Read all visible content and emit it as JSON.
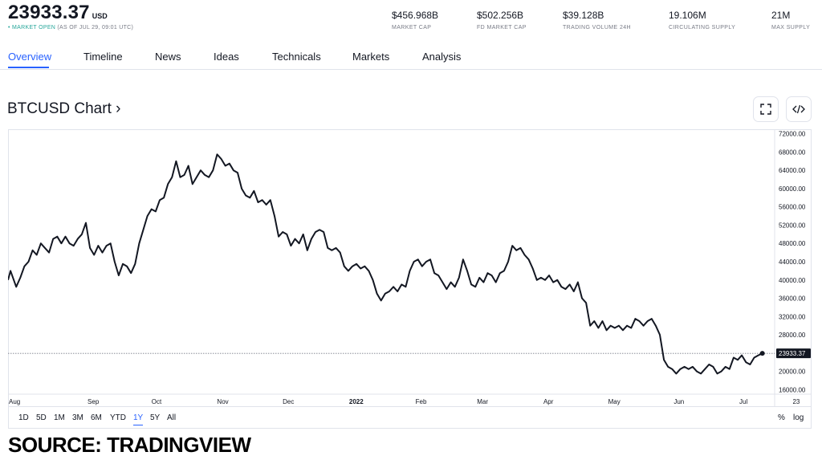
{
  "header": {
    "price": "23933.37",
    "currency": "USD",
    "status_dot": "•",
    "status_open": "MARKET OPEN",
    "status_time": "(AS OF JUL 29, 09:01 UTC)"
  },
  "stats": [
    {
      "value": "$456.968B",
      "label": "MARKET CAP"
    },
    {
      "value": "$502.256B",
      "label": "FD MARKET CAP"
    },
    {
      "value": "$39.128B",
      "label": "TRADING VOLUME 24H"
    },
    {
      "value": "19.106M",
      "label": "CIRCULATING SUPPLY"
    },
    {
      "value": "21M",
      "label": "MAX SUPPLY"
    }
  ],
  "tabs": [
    {
      "label": "Overview",
      "active": true
    },
    {
      "label": "Timeline"
    },
    {
      "label": "News"
    },
    {
      "label": "Ideas"
    },
    {
      "label": "Technicals"
    },
    {
      "label": "Markets"
    },
    {
      "label": "Analysis"
    }
  ],
  "chart_title": "BTCUSD Chart ›",
  "icons": {
    "fullscreen": "fullscreen-icon",
    "embed": "code-embed-icon"
  },
  "ranges": [
    "1D",
    "5D",
    "1M",
    "3M",
    "6M",
    "YTD",
    "1Y",
    "5Y",
    "All"
  ],
  "active_range": "1Y",
  "scale_options": [
    "%",
    "log"
  ],
  "source": "SOURCE: TRADINGVIEW",
  "colors": {
    "accent": "#2962ff",
    "line": "#131722",
    "market_open": "#26a69a"
  },
  "chart_data": {
    "type": "line",
    "title": "",
    "xlabel": "",
    "ylabel": "",
    "ylim": [
      15000,
      73000
    ],
    "y_ticks": [
      "72000.00",
      "68000.00",
      "64000.00",
      "60000.00",
      "56000.00",
      "52000.00",
      "48000.00",
      "44000.00",
      "40000.00",
      "36000.00",
      "32000.00",
      "28000.00",
      "24000.00",
      "20000.00",
      "16000.00"
    ],
    "x_ticks": [
      "Aug",
      "Sep",
      "Oct",
      "Nov",
      "Dec",
      "2022",
      "Feb",
      "Mar",
      "Apr",
      "May",
      "Jun",
      "Jul",
      "23"
    ],
    "last_price_label": "23933.37",
    "grid": false,
    "series": [
      {
        "values": [
          [
            0.0,
            40000
          ],
          [
            0.3,
            42000
          ],
          [
            1.0,
            38500
          ],
          [
            1.5,
            40500
          ],
          [
            2.0,
            43000
          ],
          [
            2.5,
            44000
          ],
          [
            3.0,
            46500
          ],
          [
            3.5,
            45500
          ],
          [
            4.0,
            48000
          ],
          [
            4.5,
            47000
          ],
          [
            5.0,
            46000
          ],
          [
            5.5,
            49000
          ],
          [
            6.0,
            49500
          ],
          [
            6.5,
            48000
          ],
          [
            7.0,
            49500
          ],
          [
            7.5,
            48000
          ],
          [
            8.0,
            47500
          ],
          [
            8.5,
            49000
          ],
          [
            9.0,
            50000
          ],
          [
            9.5,
            52500
          ],
          [
            10.0,
            47000
          ],
          [
            10.5,
            45500
          ],
          [
            11.0,
            47500
          ],
          [
            11.5,
            46000
          ],
          [
            12.0,
            47500
          ],
          [
            12.5,
            48000
          ],
          [
            13.0,
            44000
          ],
          [
            13.5,
            41000
          ],
          [
            14.0,
            43500
          ],
          [
            14.5,
            43000
          ],
          [
            15.0,
            41500
          ],
          [
            15.5,
            43500
          ],
          [
            16.0,
            48000
          ],
          [
            16.5,
            51000
          ],
          [
            17.0,
            54000
          ],
          [
            17.5,
            55500
          ],
          [
            18.0,
            55000
          ],
          [
            18.5,
            57500
          ],
          [
            19.0,
            58000
          ],
          [
            19.5,
            61000
          ],
          [
            20.0,
            62500
          ],
          [
            20.5,
            66000
          ],
          [
            21.0,
            62500
          ],
          [
            21.5,
            63000
          ],
          [
            22.0,
            65000
          ],
          [
            22.5,
            61000
          ],
          [
            23.0,
            62500
          ],
          [
            23.5,
            64000
          ],
          [
            24.0,
            63000
          ],
          [
            24.5,
            62500
          ],
          [
            25.0,
            64000
          ],
          [
            25.5,
            67500
          ],
          [
            26.0,
            66500
          ],
          [
            26.5,
            65000
          ],
          [
            27.0,
            65500
          ],
          [
            27.5,
            64000
          ],
          [
            28.0,
            63500
          ],
          [
            28.5,
            60000
          ],
          [
            29.0,
            58500
          ],
          [
            29.5,
            58000
          ],
          [
            30.0,
            59500
          ],
          [
            30.5,
            57000
          ],
          [
            31.0,
            57500
          ],
          [
            31.5,
            56500
          ],
          [
            32.0,
            57500
          ],
          [
            32.5,
            54000
          ],
          [
            33.0,
            49500
          ],
          [
            33.5,
            50500
          ],
          [
            34.0,
            50000
          ],
          [
            34.5,
            47500
          ],
          [
            35.0,
            49000
          ],
          [
            35.5,
            48000
          ],
          [
            36.0,
            50000
          ],
          [
            36.5,
            46500
          ],
          [
            37.0,
            49000
          ],
          [
            37.5,
            50500
          ],
          [
            38.0,
            51000
          ],
          [
            38.5,
            50500
          ],
          [
            39.0,
            47000
          ],
          [
            39.5,
            46500
          ],
          [
            40.0,
            47000
          ],
          [
            40.5,
            46000
          ],
          [
            41.0,
            43000
          ],
          [
            41.5,
            42000
          ],
          [
            42.0,
            43000
          ],
          [
            42.5,
            43500
          ],
          [
            43.0,
            42500
          ],
          [
            43.5,
            43000
          ],
          [
            44.0,
            42000
          ],
          [
            44.5,
            40000
          ],
          [
            45.0,
            37000
          ],
          [
            45.5,
            35500
          ],
          [
            46.0,
            37000
          ],
          [
            46.5,
            37500
          ],
          [
            47.0,
            38500
          ],
          [
            47.5,
            37500
          ],
          [
            48.0,
            39000
          ],
          [
            48.5,
            38500
          ],
          [
            49.0,
            42000
          ],
          [
            49.5,
            44000
          ],
          [
            50.0,
            44500
          ],
          [
            50.5,
            43000
          ],
          [
            51.0,
            44000
          ],
          [
            51.5,
            44500
          ],
          [
            52.0,
            41500
          ],
          [
            52.5,
            41000
          ],
          [
            53.0,
            39500
          ],
          [
            53.5,
            38000
          ],
          [
            54.0,
            39500
          ],
          [
            54.5,
            38500
          ],
          [
            55.0,
            40500
          ],
          [
            55.5,
            44500
          ],
          [
            56.0,
            42000
          ],
          [
            56.5,
            39000
          ],
          [
            57.0,
            38500
          ],
          [
            57.5,
            40500
          ],
          [
            58.0,
            39500
          ],
          [
            58.5,
            41500
          ],
          [
            59.0,
            41000
          ],
          [
            59.5,
            39500
          ],
          [
            60.0,
            41500
          ],
          [
            60.5,
            42000
          ],
          [
            61.0,
            44000
          ],
          [
            61.5,
            47500
          ],
          [
            62.0,
            46500
          ],
          [
            62.5,
            47000
          ],
          [
            63.0,
            45500
          ],
          [
            63.5,
            44500
          ],
          [
            64.0,
            42500
          ],
          [
            64.5,
            40000
          ],
          [
            65.0,
            40500
          ],
          [
            65.5,
            40000
          ],
          [
            66.0,
            41000
          ],
          [
            66.5,
            39500
          ],
          [
            67.0,
            40000
          ],
          [
            67.5,
            38500
          ],
          [
            68.0,
            38000
          ],
          [
            68.5,
            39000
          ],
          [
            69.0,
            37500
          ],
          [
            69.5,
            39500
          ],
          [
            70.0,
            36000
          ],
          [
            70.5,
            35000
          ],
          [
            71.0,
            30000
          ],
          [
            71.5,
            31000
          ],
          [
            72.0,
            29500
          ],
          [
            72.5,
            31000
          ],
          [
            73.0,
            29000
          ],
          [
            73.5,
            30000
          ],
          [
            74.0,
            29500
          ],
          [
            74.5,
            30000
          ],
          [
            75.0,
            29000
          ],
          [
            75.5,
            30000
          ],
          [
            76.0,
            29500
          ],
          [
            76.5,
            31500
          ],
          [
            77.0,
            31000
          ],
          [
            77.5,
            30000
          ],
          [
            78.0,
            31000
          ],
          [
            78.5,
            31500
          ],
          [
            79.0,
            30000
          ],
          [
            79.5,
            28000
          ],
          [
            80.0,
            22500
          ],
          [
            80.5,
            21000
          ],
          [
            81.0,
            20500
          ],
          [
            81.5,
            19500
          ],
          [
            82.0,
            20500
          ],
          [
            82.5,
            21000
          ],
          [
            83.0,
            20500
          ],
          [
            83.5,
            21000
          ],
          [
            84.0,
            20000
          ],
          [
            84.5,
            19500
          ],
          [
            85.0,
            20500
          ],
          [
            85.5,
            21500
          ],
          [
            86.0,
            21000
          ],
          [
            86.5,
            19500
          ],
          [
            87.0,
            20000
          ],
          [
            87.5,
            21000
          ],
          [
            88.0,
            20500
          ],
          [
            88.5,
            23000
          ],
          [
            89.0,
            22500
          ],
          [
            89.5,
            23500
          ],
          [
            90.0,
            22000
          ],
          [
            90.5,
            21500
          ],
          [
            91.0,
            23000
          ],
          [
            91.5,
            23500
          ],
          [
            92.0,
            23933
          ]
        ]
      }
    ]
  }
}
